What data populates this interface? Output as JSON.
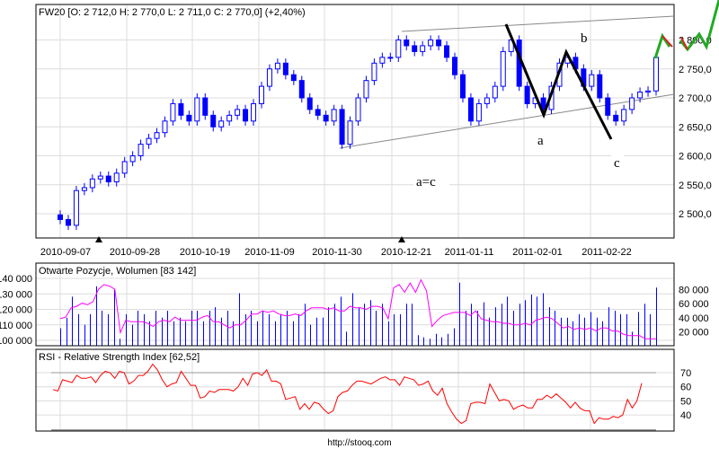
{
  "header": {
    "title": "FW20 [O: 2 712,0  H: 2 770,0  L: 2 711,0  C: 2 770,0] (+2,40%)"
  },
  "footer": {
    "url": "http://stooq.com"
  },
  "colors": {
    "candle": "#0000ff",
    "oi": "#ff00ff",
    "volume": "#0000ff",
    "rsi": "#ff0000",
    "forecast": "#22aa22",
    "wave": "#000000"
  },
  "annotations": {
    "a": "a",
    "b": "b",
    "c": "c",
    "ac": "a=c"
  },
  "chart_data": [
    {
      "type": "candlestick",
      "title": "FW20 [O: 2 712,0  H: 2 770,0  L: 2 711,0  C: 2 770,0] (+2,40%)",
      "x_tick_labels": [
        "2010-09-07",
        "2010-09-28",
        "2010-10-19",
        "2010-11-09",
        "2010-11-30",
        "2010-12-21",
        "2011-01-11",
        "2011-02-01",
        "2011-02-22"
      ],
      "y_tick_labels": [
        "2 500,0",
        "2 550,0",
        "2 600,0",
        "2 650,0",
        "2 700,0",
        "2 750,0",
        "2 800,0"
      ],
      "y_ticks": [
        2500,
        2550,
        2600,
        2650,
        2700,
        2750,
        2800
      ],
      "ylim": [
        2465,
        2865
      ],
      "close": [
        2490,
        2480,
        2540,
        2545,
        2560,
        2565,
        2555,
        2570,
        2590,
        2600,
        2620,
        2630,
        2640,
        2660,
        2690,
        2670,
        2660,
        2700,
        2670,
        2650,
        2660,
        2670,
        2680,
        2660,
        2690,
        2720,
        2750,
        2760,
        2740,
        2730,
        2700,
        2680,
        2670,
        2660,
        2680,
        2620,
        2660,
        2700,
        2730,
        2760,
        2770,
        2770,
        2800,
        2790,
        2780,
        2790,
        2800,
        2790,
        2770,
        2740,
        2700,
        2660,
        2690,
        2700,
        2720,
        2780,
        2800,
        2720,
        2690,
        2700,
        2680,
        2720,
        2760,
        2770,
        2750,
        2720,
        2740,
        2700,
        2670,
        2660,
        2680,
        2700,
        2710,
        2712,
        2770
      ],
      "last": {
        "open": 2712.0,
        "high": 2770.0,
        "low": 2711.0,
        "close": 2770.0,
        "change_pct": 2.4
      }
    },
    {
      "type": "bar+line",
      "title": "Otwarte Pozycje, Wolumen [83 142]",
      "left_tick_labels": [
        "140 000",
        "130 000",
        "120 000",
        "110 000",
        "100 000"
      ],
      "left_ticks": [
        140000,
        130000,
        120000,
        110000,
        100000
      ],
      "right_tick_labels": [
        "80 000",
        "60 000",
        "40 000",
        "20 000"
      ],
      "right_ticks": [
        80000,
        60000,
        40000,
        20000
      ],
      "volume_thousands": [
        25,
        40,
        70,
        45,
        30,
        45,
        85,
        50,
        45,
        80,
        10,
        45,
        30,
        50,
        45,
        35,
        50,
        40,
        50,
        35,
        40,
        35,
        50,
        50,
        35,
        50,
        55,
        40,
        50,
        35,
        75,
        45,
        50,
        35,
        50,
        45,
        35,
        45,
        50,
        35,
        45,
        60,
        30,
        40,
        40,
        55,
        60,
        70,
        20,
        75,
        55,
        60,
        65,
        50,
        60,
        35,
        45,
        45,
        60,
        60,
        15,
        12,
        10,
        17,
        12,
        17,
        25,
        90,
        50,
        60,
        50,
        62,
        40,
        55,
        60,
        70,
        50,
        60,
        65,
        73,
        70,
        75,
        55,
        50,
        40,
        40,
        35,
        45,
        40,
        48,
        40,
        35,
        55,
        50,
        45,
        45,
        20,
        48,
        60,
        45,
        83
      ],
      "open_interest_thousands": [
        114,
        115,
        121,
        122,
        124,
        123,
        125,
        133,
        136,
        135,
        133,
        105,
        113,
        112,
        112,
        112,
        111,
        109,
        112,
        113,
        112,
        115,
        113,
        113,
        113,
        113,
        115,
        116,
        112,
        112,
        110,
        108,
        110,
        110,
        113,
        117,
        117,
        119,
        118,
        119,
        117,
        116,
        116,
        117,
        116,
        119,
        121,
        121,
        121,
        120,
        121,
        119,
        119,
        122,
        121,
        121,
        120,
        122,
        122,
        121,
        114,
        134,
        136,
        131,
        137,
        131,
        139,
        132,
        109,
        113,
        116,
        117,
        118,
        118,
        118,
        116,
        119,
        114,
        113,
        112,
        112,
        111,
        111,
        110,
        110,
        111,
        110,
        113,
        114,
        115,
        114,
        111,
        108,
        109,
        107,
        108,
        107,
        108,
        106,
        108,
        108,
        106,
        106,
        104,
        103,
        103,
        103,
        101,
        101,
        101
      ]
    },
    {
      "type": "line",
      "title": "RSI - Relative Strength Index [62,52]",
      "y_tick_labels": [
        "70",
        "60",
        "50",
        "40"
      ],
      "y_ticks": [
        70,
        60,
        50,
        40
      ],
      "values": [
        58,
        57,
        65,
        64,
        63,
        68,
        66,
        66,
        67,
        63,
        68,
        71,
        70,
        66,
        71,
        70,
        62,
        64,
        68,
        68,
        71,
        76,
        72,
        65,
        60,
        62,
        63,
        71,
        66,
        61,
        61,
        52,
        53,
        57,
        56,
        58,
        58,
        58,
        57,
        60,
        66,
        61,
        69,
        70,
        68,
        72,
        64,
        64,
        62,
        51,
        52,
        53,
        44,
        48,
        44,
        49,
        48,
        44,
        41,
        43,
        53,
        56,
        57,
        61,
        64,
        64,
        63,
        62,
        64,
        66,
        67,
        65,
        65,
        61,
        67,
        66,
        65,
        61,
        62,
        64,
        57,
        54,
        59,
        48,
        42,
        37,
        34,
        36,
        48,
        49,
        49,
        48,
        62,
        56,
        50,
        51,
        50,
        44,
        46,
        47,
        45,
        45,
        51,
        51,
        54,
        52,
        55,
        52,
        49,
        45,
        49,
        45,
        43,
        43,
        34,
        38,
        37,
        37,
        39,
        38,
        40,
        51,
        45,
        50,
        62.52
      ]
    }
  ]
}
